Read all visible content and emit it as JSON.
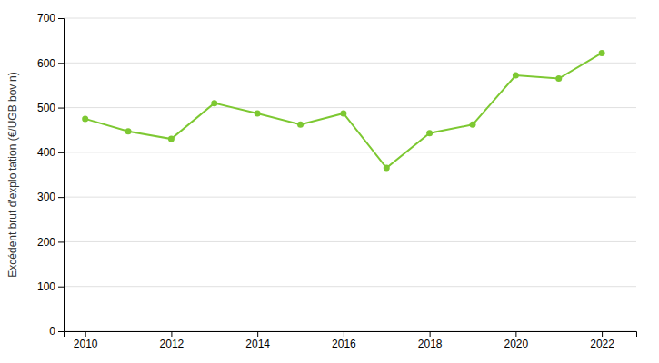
{
  "chart_data": {
    "type": "line",
    "x": [
      2010,
      2011,
      2012,
      2013,
      2014,
      2015,
      2016,
      2017,
      2018,
      2019,
      2020,
      2021,
      2022
    ],
    "values": [
      475,
      447,
      430,
      510,
      487,
      462,
      487,
      365,
      443,
      462,
      572,
      565,
      622
    ],
    "color": "#7dc832",
    "marker": "circle",
    "ylabel": "Excédent brut d'exploitation (€/UGB bovin)",
    "xlim": [
      2009.5,
      2022.8
    ],
    "xticks": [
      2010,
      2012,
      2014,
      2016,
      2018,
      2020,
      2022
    ],
    "ylim": [
      0,
      700
    ],
    "yticks": [
      0,
      100,
      200,
      300,
      400,
      500,
      600,
      700
    ],
    "grid": "y"
  }
}
